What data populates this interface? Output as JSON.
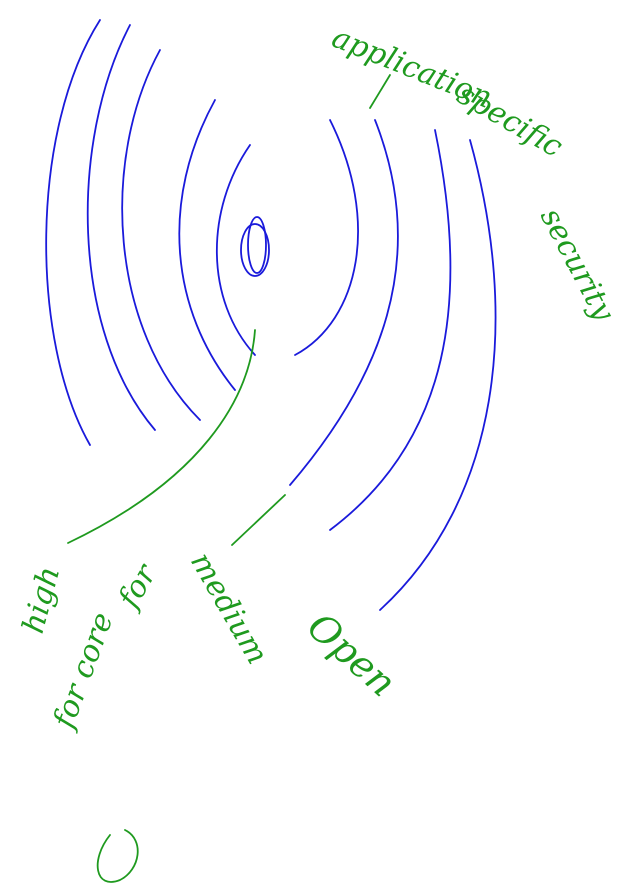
{
  "labels": {
    "top_right": [
      "application",
      "specific",
      "security"
    ],
    "inner": "high",
    "middle": [
      "medium",
      "for"
    ],
    "outer": "Open",
    "bottom": "for core"
  }
}
